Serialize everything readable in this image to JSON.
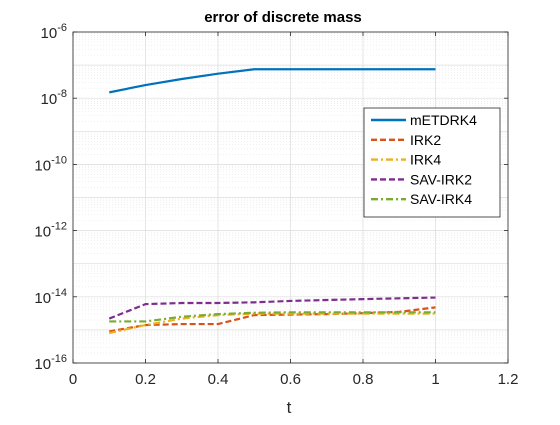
{
  "chart_data": {
    "type": "line",
    "title": "error of discrete mass",
    "xlabel": "t",
    "ylabel": "",
    "xlim": [
      0,
      1.2
    ],
    "ylim": [
      1e-16,
      1e-06
    ],
    "yscale": "log",
    "grid": true,
    "minor_grid": true,
    "legend_position": "right",
    "x_ticks": [
      0,
      0.2,
      0.4,
      0.6,
      0.8,
      1,
      1.2
    ],
    "x_tick_labels": [
      "0",
      "0.2",
      "0.4",
      "0.6",
      "0.8",
      "1",
      "1.2"
    ],
    "y_ticks": [
      {
        "exp": -16,
        "base": "10",
        "power": "-16"
      },
      {
        "exp": -14,
        "base": "10",
        "power": "-14"
      },
      {
        "exp": -12,
        "base": "10",
        "power": "-12"
      },
      {
        "exp": -10,
        "base": "10",
        "power": "-10"
      },
      {
        "exp": -8,
        "base": "10",
        "power": "-8"
      },
      {
        "exp": -6,
        "base": "10",
        "power": "-6"
      }
    ],
    "x": [
      0.1,
      0.2,
      0.3,
      0.4,
      0.5,
      0.6,
      0.7,
      0.8,
      0.9,
      1.0
    ],
    "series": [
      {
        "name": "mETDRK4",
        "color": "#0072BD",
        "dash": "solid",
        "values": [
          1.5e-08,
          2.5e-08,
          3.8e-08,
          5.5e-08,
          7.5e-08,
          7.5e-08,
          7.5e-08,
          7.5e-08,
          7.5e-08,
          7.5e-08
        ]
      },
      {
        "name": "IRK2",
        "color": "#D95319",
        "dash": "dashed",
        "values": [
          9e-16,
          1.4e-15,
          1.5e-15,
          1.5e-15,
          2.8e-15,
          2.9e-15,
          3e-15,
          3.2e-15,
          3.5e-15,
          4.8e-15
        ]
      },
      {
        "name": "IRK4",
        "color": "#EDB120",
        "dash": "dashdot",
        "values": [
          8e-16,
          1.4e-15,
          2.2e-15,
          2.8e-15,
          3.1e-15,
          3.1e-15,
          3.1e-15,
          3.1e-15,
          3.1e-15,
          3.1e-15
        ]
      },
      {
        "name": "SAV-IRK2",
        "color": "#7E2F8E",
        "dash": "dashed",
        "values": [
          2.2e-15,
          6e-15,
          6.5e-15,
          6.5e-15,
          6.8e-15,
          7.5e-15,
          8e-15,
          8.5e-15,
          9e-15,
          9.5e-15
        ]
      },
      {
        "name": "SAV-IRK4",
        "color": "#77AC30",
        "dash": "dashdot",
        "values": [
          1.8e-15,
          1.8e-15,
          2.5e-15,
          3e-15,
          3.3e-15,
          3.4e-15,
          3.4e-15,
          3.4e-15,
          3.4e-15,
          3.4e-15
        ]
      }
    ]
  }
}
